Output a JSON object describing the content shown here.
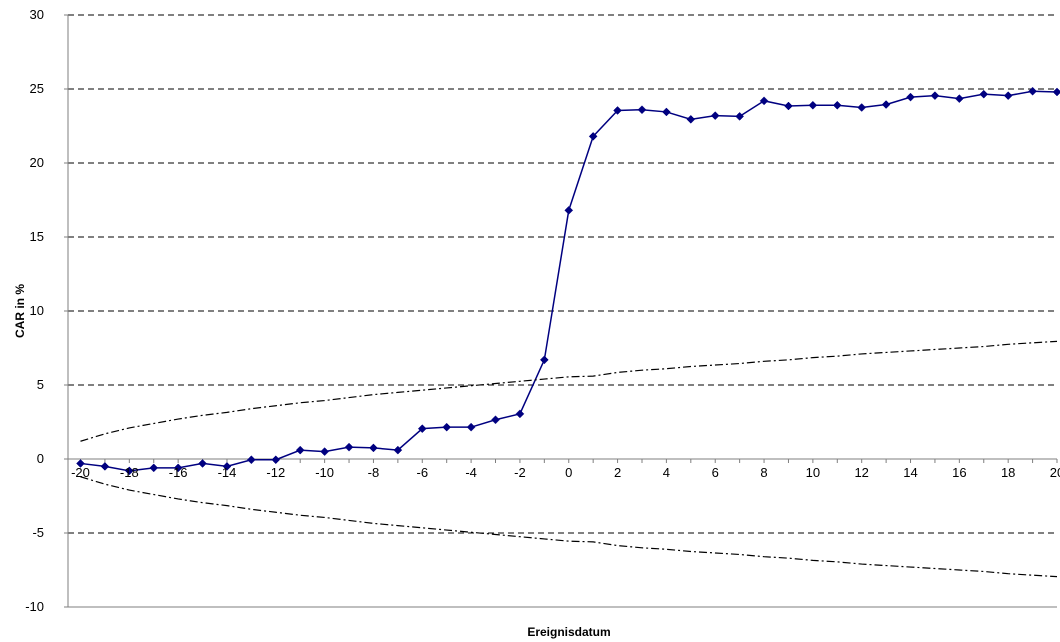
{
  "chart_data": {
    "type": "line",
    "title": "",
    "xlabel": "Ereignisdatum",
    "ylabel": "CAR in %",
    "xlim": [
      -20,
      20
    ],
    "ylim": [
      -10,
      30
    ],
    "x_ticks": [
      -20,
      -18,
      -16,
      -14,
      -12,
      -10,
      -8,
      -6,
      -4,
      -2,
      0,
      2,
      4,
      6,
      8,
      10,
      12,
      14,
      16,
      18,
      20
    ],
    "y_ticks": [
      -10,
      -5,
      0,
      5,
      10,
      15,
      20,
      25,
      30
    ],
    "grid": "horizontal-dashed",
    "legend": "none",
    "x": [
      -20,
      -19,
      -18,
      -17,
      -16,
      -15,
      -14,
      -13,
      -12,
      -11,
      -10,
      -9,
      -8,
      -7,
      -6,
      -5,
      -4,
      -3,
      -2,
      -1,
      0,
      1,
      2,
      3,
      4,
      5,
      6,
      7,
      8,
      9,
      10,
      11,
      12,
      13,
      14,
      15,
      16,
      17,
      18,
      19,
      20
    ],
    "series": [
      {
        "style": "solid-with-diamond-markers",
        "color": "#000080",
        "values": [
          -0.3,
          -0.5,
          -0.8,
          -0.6,
          -0.6,
          -0.3,
          -0.5,
          -0.05,
          -0.05,
          0.6,
          0.5,
          0.8,
          0.75,
          0.6,
          2.05,
          2.15,
          2.15,
          2.65,
          3.05,
          6.7,
          16.8,
          21.8,
          23.55,
          23.6,
          23.45,
          22.95,
          23.2,
          23.15,
          24.2,
          23.85,
          23.9,
          23.9,
          23.75,
          23.95,
          24.45,
          24.55,
          24.35,
          24.65,
          24.55,
          24.85,
          24.8
        ]
      },
      {
        "style": "dash-dot",
        "color": "#000000",
        "values": [
          1.2,
          1.7,
          2.1,
          2.4,
          2.7,
          2.95,
          3.15,
          3.4,
          3.6,
          3.8,
          3.95,
          4.15,
          4.35,
          4.5,
          4.65,
          4.8,
          4.95,
          5.1,
          5.25,
          5.4,
          5.55,
          5.6,
          5.85,
          6.0,
          6.1,
          6.25,
          6.35,
          6.45,
          6.6,
          6.7,
          6.85,
          6.95,
          7.1,
          7.2,
          7.3,
          7.4,
          7.5,
          7.6,
          7.75,
          7.85,
          7.95
        ]
      },
      {
        "style": "dash-dot",
        "color": "#000000",
        "values": [
          -1.2,
          -1.7,
          -2.1,
          -2.4,
          -2.7,
          -2.95,
          -3.15,
          -3.4,
          -3.6,
          -3.8,
          -3.95,
          -4.15,
          -4.35,
          -4.5,
          -4.65,
          -4.8,
          -4.95,
          -5.1,
          -5.25,
          -5.4,
          -5.55,
          -5.6,
          -5.85,
          -6.0,
          -6.1,
          -6.25,
          -6.35,
          -6.45,
          -6.6,
          -6.7,
          -6.85,
          -6.95,
          -7.1,
          -7.2,
          -7.3,
          -7.4,
          -7.5,
          -7.6,
          -7.75,
          -7.85,
          -7.95
        ]
      }
    ]
  }
}
